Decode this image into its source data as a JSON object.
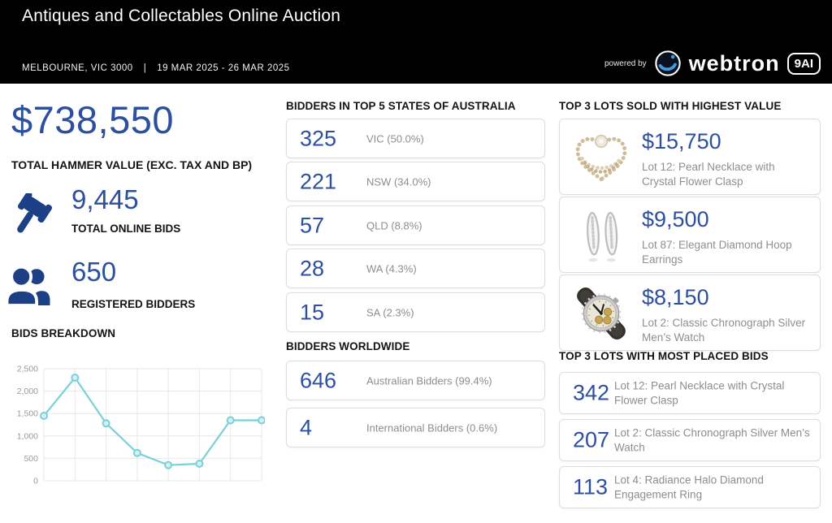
{
  "header": {
    "title": "Antiques and Collectables Online Auction",
    "location": "MELBOURNE, VIC 3000",
    "separator": "|",
    "date_range": "19 MAR 2025 - 26 MAR 2025",
    "powered_by": "powered by",
    "brand": "webtron",
    "brand_badge": "9AI"
  },
  "stats": {
    "hammer_value": "$738,550",
    "hammer_label": "TOTAL HAMMER VALUE (EXC. TAX AND BP)",
    "online_bids": "9,445",
    "online_bids_label": "TOTAL ONLINE BIDS",
    "online_bids_icon": "gavel-icon",
    "registered_bidders": "650",
    "registered_bidders_label": "REGISTERED BIDDERS",
    "registered_bidders_icon": "people-icon"
  },
  "chart_data": {
    "type": "line",
    "title": "BIDS BREAKDOWN",
    "xlabel": "",
    "ylabel": "",
    "x": [
      1,
      2,
      3,
      4,
      5,
      6,
      7,
      8
    ],
    "values": [
      1450,
      2300,
      1280,
      620,
      350,
      380,
      1350,
      1350
    ],
    "ylim": [
      0,
      2500
    ],
    "yticks": [
      0,
      500,
      1000,
      1500,
      2000,
      2500
    ],
    "ytick_labels": [
      "0",
      "500",
      "1,000",
      "1,500",
      "2,000",
      "2,500"
    ],
    "x_tick_labels_visible": false,
    "grid": true,
    "legend": "none",
    "line_color": "#79d1d8",
    "marker_fill": "#d6f0f2"
  },
  "states_section": {
    "title": "BIDDERS IN TOP 5 STATES OF AUSTRALIA",
    "rows": [
      {
        "value": "325",
        "label": "VIC (50.0%)"
      },
      {
        "value": "221",
        "label": "NSW (34.0%)"
      },
      {
        "value": "57",
        "label": "QLD (8.8%)"
      },
      {
        "value": "28",
        "label": "WA (4.3%)"
      },
      {
        "value": "15",
        "label": "SA (2.3%)"
      }
    ]
  },
  "worldwide_section": {
    "title": "BIDDERS WORLDWIDE",
    "rows": [
      {
        "value": "646",
        "label": "Australian Bidders (99.4%)"
      },
      {
        "value": "4",
        "label": "International Bidders (0.6%)"
      }
    ]
  },
  "top_lots_value": {
    "title": "TOP 3 LOTS SOLD WITH HIGHEST VALUE",
    "items": [
      {
        "price": "$15,750",
        "description": "Lot 12: Pearl Necklace with Crystal Flower Clasp",
        "image": "pearl-necklace-image"
      },
      {
        "price": "$9,500",
        "description": "Lot 87: Elegant Diamond Hoop Earrings",
        "image": "hoop-earrings-image"
      },
      {
        "price": "$8,150",
        "description": "Lot 2: Classic Chronograph Silver Men’s Watch",
        "image": "chronograph-watch-image"
      }
    ]
  },
  "top_lots_bids": {
    "title": "TOP 3 LOTS WITH MOST PLACED BIDS",
    "items": [
      {
        "bids": "342",
        "description": "Lot 12: Pearl Necklace with Crystal Flower Clasp"
      },
      {
        "bids": "207",
        "description": "Lot 2: Classic Chronograph Silver Men’s Watch"
      },
      {
        "bids": "113",
        "description": "Lot 4: Radiance Halo Diamond Engagement Ring"
      }
    ]
  },
  "colors": {
    "accent_blue": "#2c4f9e",
    "icon_navy": "#1d3f85",
    "header_bg": "#000000",
    "chart_line": "#79d1d8",
    "label_gray": "#8d8d8d",
    "card_border": "#dddddd"
  }
}
